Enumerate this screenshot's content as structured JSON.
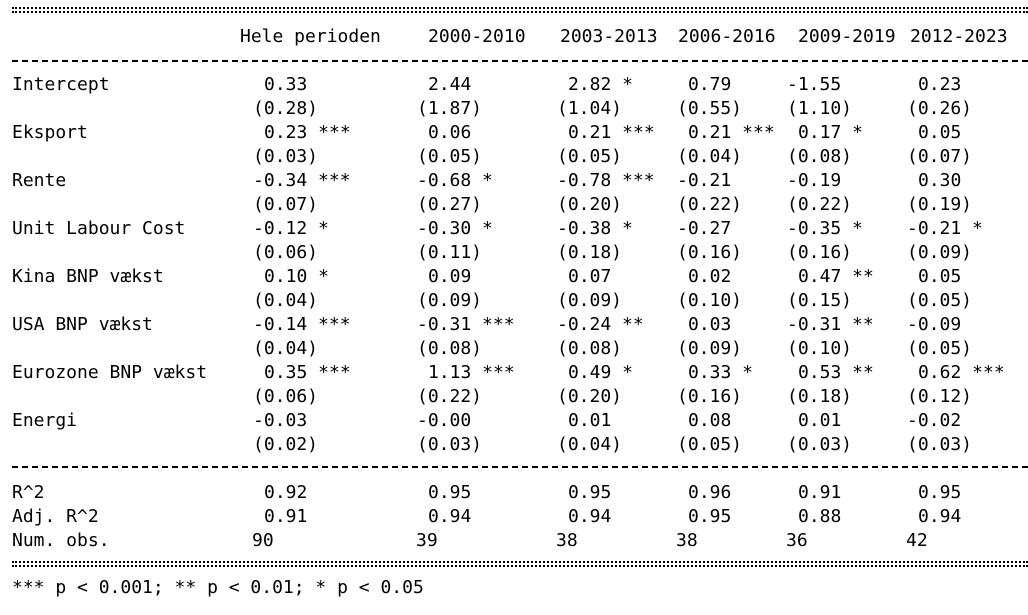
{
  "header": {
    "columns": [
      "Hele perioden",
      "2000-2010",
      "2003-2013",
      "2006-2016",
      "2009-2019",
      "2012-2023"
    ]
  },
  "rows": [
    {
      "label": "Intercept",
      "coef": [
        "0.33",
        "2.44",
        "2.82 *",
        "0.79",
        "-1.55",
        "0.23"
      ],
      "se": [
        "(0.28)",
        "(1.87)",
        "(1.04)",
        "(0.55)",
        "(1.10)",
        "(0.26)"
      ]
    },
    {
      "label": "Eksport",
      "coef": [
        "0.23 ***",
        "0.06",
        "0.21 ***",
        "0.21 ***",
        "0.17 *",
        "0.05"
      ],
      "se": [
        "(0.03)",
        "(0.05)",
        "(0.05)",
        "(0.04)",
        "(0.08)",
        "(0.07)"
      ]
    },
    {
      "label": "Rente",
      "coef": [
        "-0.34 ***",
        "-0.68 *",
        "-0.78 ***",
        "-0.21",
        "-0.19",
        "0.30"
      ],
      "se": [
        "(0.07)",
        "(0.27)",
        "(0.20)",
        "(0.22)",
        "(0.22)",
        "(0.19)"
      ]
    },
    {
      "label": "Unit Labour Cost",
      "coef": [
        "-0.12 *",
        "-0.30 *",
        "-0.38 *",
        "-0.27",
        "-0.35 *",
        "-0.21 *"
      ],
      "se": [
        "(0.06)",
        "(0.11)",
        "(0.18)",
        "(0.16)",
        "(0.16)",
        "(0.09)"
      ]
    },
    {
      "label": "Kina BNP vækst",
      "coef": [
        "0.10 *",
        "0.09",
        "0.07",
        "0.02",
        "0.47 **",
        "0.05"
      ],
      "se": [
        "(0.04)",
        "(0.09)",
        "(0.09)",
        "(0.10)",
        "(0.15)",
        "(0.05)"
      ]
    },
    {
      "label": "USA BNP vækst",
      "coef": [
        "-0.14 ***",
        "-0.31 ***",
        "-0.24 **",
        "0.03",
        "-0.31 **",
        "-0.09"
      ],
      "se": [
        "(0.04)",
        "(0.08)",
        "(0.08)",
        "(0.09)",
        "(0.10)",
        "(0.05)"
      ]
    },
    {
      "label": "Eurozone BNP vækst",
      "coef": [
        "0.35 ***",
        "1.13 ***",
        "0.49 *",
        "0.33 *",
        "0.53 **",
        "0.62 ***"
      ],
      "se": [
        "(0.06)",
        "(0.22)",
        "(0.20)",
        "(0.16)",
        "(0.18)",
        "(0.12)"
      ]
    },
    {
      "label": "Energi",
      "coef": [
        "-0.03",
        "-0.00",
        "0.01",
        "0.08",
        "0.01",
        "-0.02"
      ],
      "se": [
        "(0.02)",
        "(0.03)",
        "(0.04)",
        "(0.05)",
        "(0.03)",
        "(0.03)"
      ]
    }
  ],
  "stats": [
    {
      "label": "R^2",
      "values": [
        "0.92",
        "0.95",
        "0.95",
        "0.96",
        "0.91",
        "0.95"
      ]
    },
    {
      "label": "Adj. R^2",
      "values": [
        "0.91",
        "0.94",
        "0.94",
        "0.95",
        "0.88",
        "0.94"
      ]
    },
    {
      "label": "Num. obs.",
      "values": [
        "90",
        "39",
        "38",
        "38",
        "36",
        "42"
      ]
    }
  ],
  "footnote": "*** p < 0.001; ** p < 0.01; * p < 0.05"
}
